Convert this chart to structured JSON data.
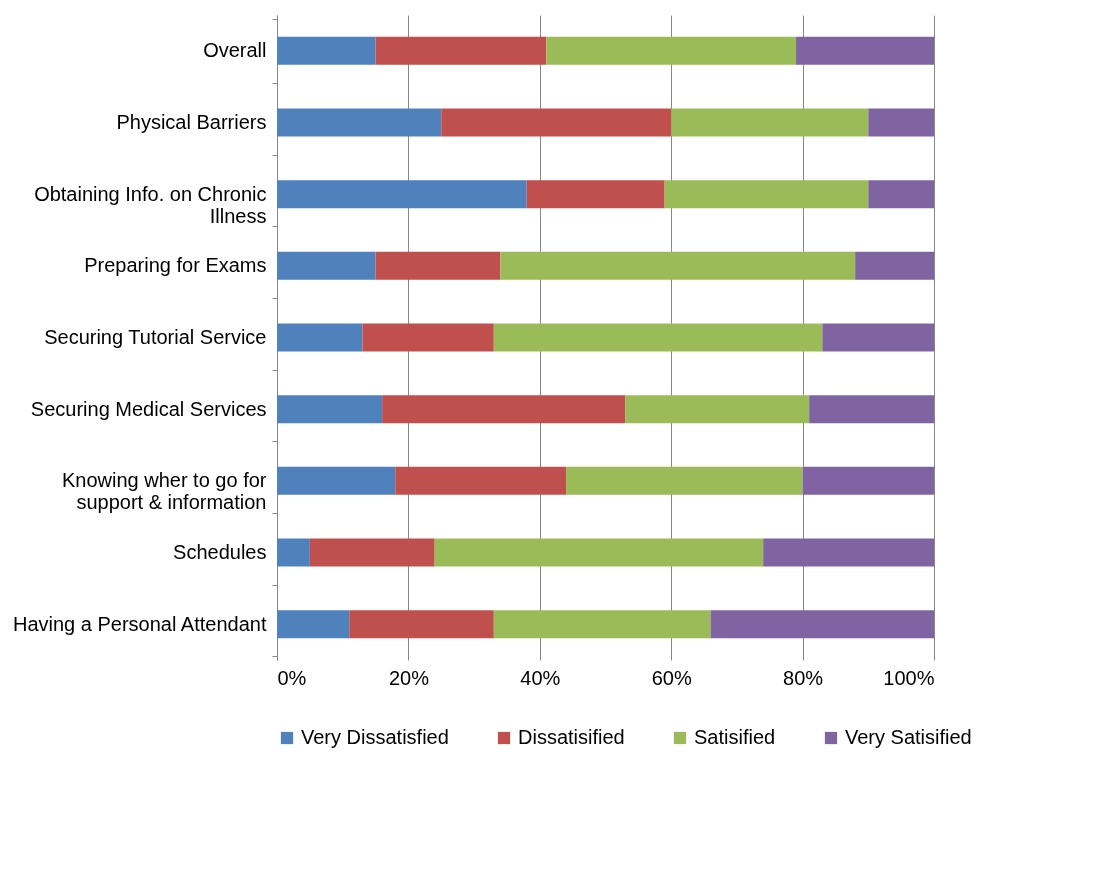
{
  "chart_data": {
    "type": "bar",
    "orientation": "horizontal",
    "stacked": true,
    "categories": [
      "Overall",
      "Physical Barriers",
      "Obtaining Info. on Chronic\nIllness",
      "Preparing for Exams",
      "Securing Tutorial Service",
      "Securing Medical Services",
      "Knowing wher to go for\nsupport & information",
      "Schedules",
      "Having  a Personal Attendant"
    ],
    "series": [
      {
        "name": "Very Dissatisfied",
        "color": "#4f81bd",
        "values": [
          15,
          25,
          38,
          15,
          13,
          16,
          18,
          5,
          11
        ]
      },
      {
        "name": "Dissatisified",
        "color": "#c0504d",
        "values": [
          26,
          35,
          21,
          19,
          20,
          37,
          26,
          19,
          22
        ]
      },
      {
        "name": "Satisified",
        "color": "#9bbb59",
        "values": [
          38,
          30,
          31,
          54,
          50,
          28,
          36,
          50,
          33
        ]
      },
      {
        "name": "Very Satisified",
        "color": "#8064a2",
        "values": [
          21,
          10,
          10,
          12,
          17,
          19,
          20,
          26,
          34
        ]
      }
    ],
    "xlim": [
      0,
      100
    ],
    "xticks": [
      {
        "value": 0,
        "label": "0%"
      },
      {
        "value": 20,
        "label": "20%"
      },
      {
        "value": 40,
        "label": "40%"
      },
      {
        "value": 60,
        "label": "60%"
      },
      {
        "value": 80,
        "label": "80%"
      },
      {
        "value": 100,
        "label": "100%"
      }
    ],
    "grid": "x",
    "legend": "bottom"
  }
}
